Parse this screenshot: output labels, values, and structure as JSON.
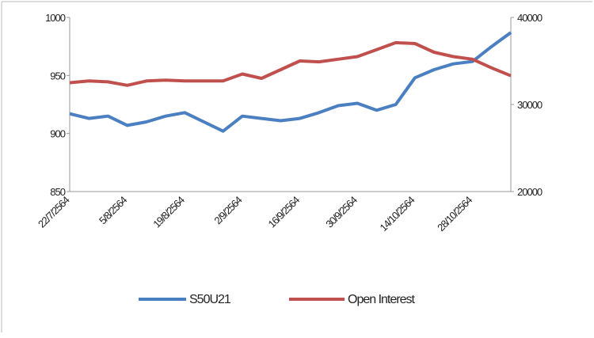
{
  "chart_data": {
    "type": "line",
    "categories": [
      "22/7/2564",
      null,
      null,
      "5/8/2564",
      null,
      null,
      "19/8/2564",
      null,
      null,
      "2/9/2564",
      null,
      null,
      "16/9/2564",
      null,
      null,
      "30/9/2564",
      null,
      null,
      "14/10/2564",
      null,
      null,
      "28/10/2564",
      null,
      null
    ],
    "series": [
      {
        "name": "S50U21",
        "color": "#4a7fc1",
        "values": [
          917,
          913,
          915,
          907,
          910,
          915,
          918,
          910,
          902,
          915,
          913,
          911,
          913,
          918,
          924,
          926,
          920,
          925,
          948,
          955,
          960,
          962,
          975,
          987
        ]
      },
      {
        "name": "Open Interest",
        "color": "#c0504d",
        "axis": "y2",
        "values": [
          32500,
          32700,
          32600,
          32200,
          32700,
          32800,
          32700,
          32700,
          32700,
          33500,
          33000,
          34000,
          35000,
          34900,
          35200,
          35500,
          36300,
          37100,
          37000,
          36000,
          35500,
          35200,
          34200,
          33300
        ]
      }
    ],
    "ylim": [
      850,
      1000
    ],
    "yticks": [
      850,
      900,
      950,
      1000
    ],
    "y2lim": [
      20000,
      40000
    ],
    "y2ticks": [
      20000,
      30000,
      40000
    ],
    "grid": false,
    "legend": "bottom"
  }
}
